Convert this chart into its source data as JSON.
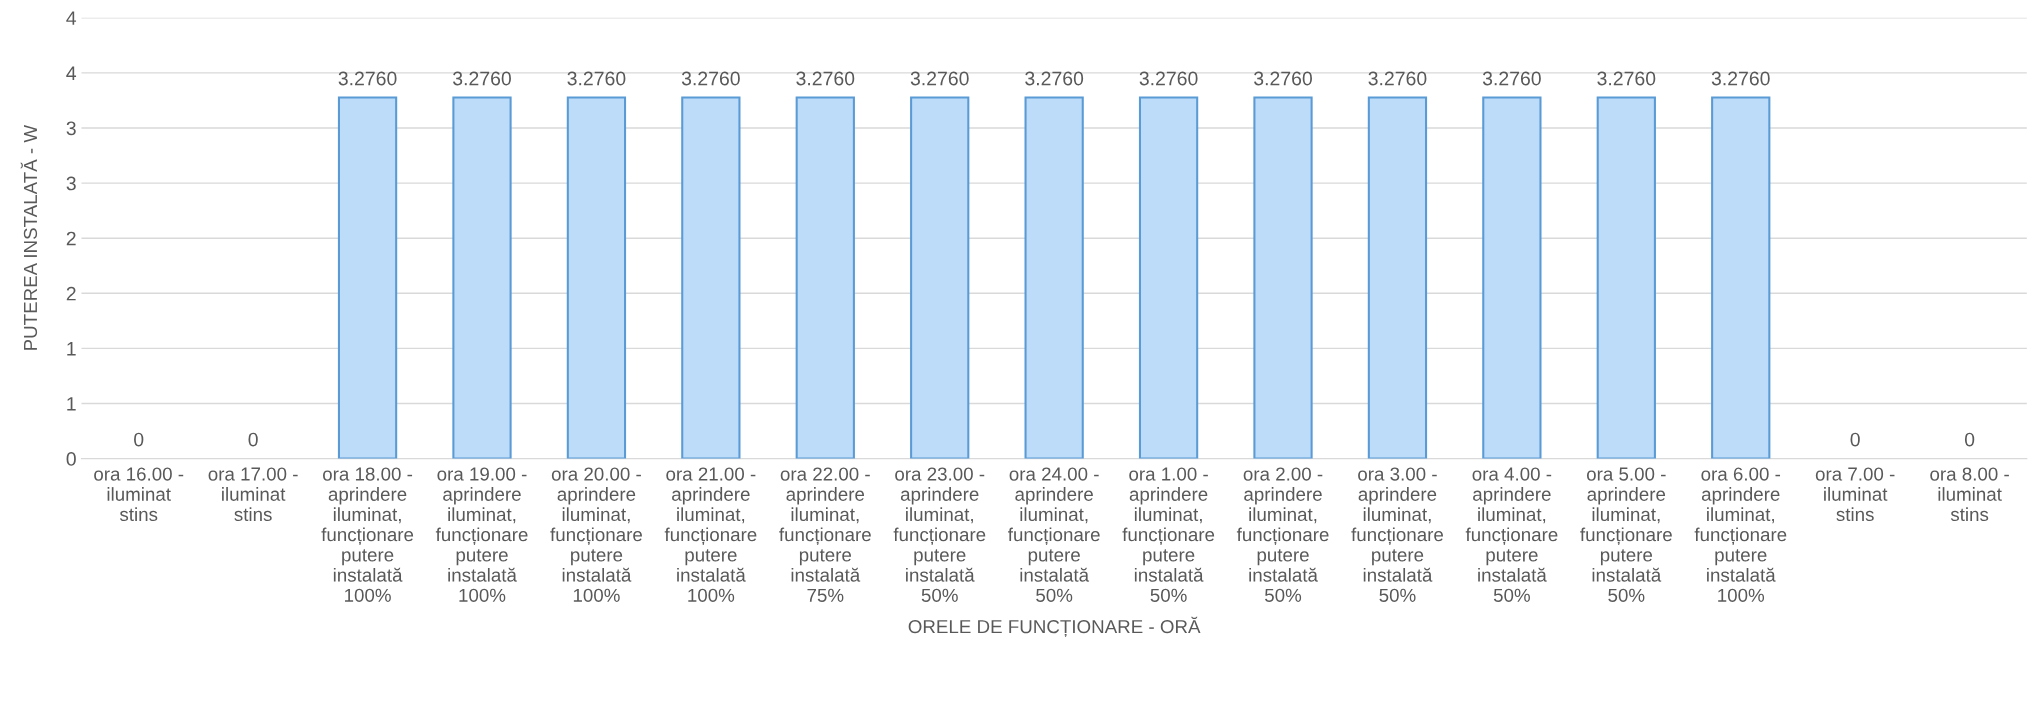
{
  "chart_data": {
    "type": "bar",
    "xlabel": "ORELE DE FUNCȚIONARE - ORĂ",
    "ylabel": "PUTEREA INSTALATĂ - W",
    "categories": [
      "ora 16.00 -\niluminat\nstins",
      "ora 17.00 -\niluminat\nstins",
      "ora 18.00 -\naprindere\niluminat,\nfuncționare\nputere\ninstalată\n100%",
      "ora 19.00 -\naprindere\niluminat,\nfuncționare\nputere\ninstalată\n100%",
      "ora 20.00 -\naprindere\niluminat,\nfuncționare\nputere\ninstalată\n100%",
      "ora 21.00 -\naprindere\niluminat,\nfuncționare\nputere\ninstalată\n100%",
      "ora 22.00 -\naprindere\niluminat,\nfuncționare\nputere\ninstalată\n75%",
      "ora 23.00 -\naprindere\niluminat,\nfuncționare\nputere\ninstalată\n50%",
      "ora 24.00 -\naprindere\niluminat,\nfuncționare\nputere\ninstalată\n50%",
      "ora 1.00 -\naprindere\niluminat,\nfuncționare\nputere\ninstalată\n50%",
      "ora 2.00 -\naprindere\niluminat,\nfuncționare\nputere\ninstalată\n50%",
      "ora 3.00 -\naprindere\niluminat,\nfuncționare\nputere\ninstalată\n50%",
      "ora 4.00 -\naprindere\niluminat,\nfuncționare\nputere\ninstalată\n50%",
      "ora 5.00 -\naprindere\niluminat,\nfuncționare\nputere\ninstalată\n50%",
      "ora 6.00 -\naprindere\niluminat,\nfuncționare\nputere\ninstalată\n100%",
      "ora 7.00 -\niluminat\nstins",
      "ora 8.00 -\niluminat\nstins"
    ],
    "values": [
      0,
      0,
      3.276,
      3.276,
      3.276,
      3.276,
      3.276,
      3.276,
      3.276,
      3.276,
      3.276,
      3.276,
      3.276,
      3.276,
      3.276,
      0,
      0
    ],
    "value_labels": [
      "0",
      "0",
      "3.2760",
      "3.2760",
      "3.2760",
      "3.2760",
      "3.2760",
      "3.2760",
      "3.2760",
      "3.2760",
      "3.2760",
      "3.2760",
      "3.2760",
      "3.2760",
      "3.2760",
      "0",
      "0"
    ],
    "color": "#bddcfa",
    "ylim": [
      0,
      4
    ],
    "yticks": [
      0,
      {
        "value": 0.5,
        "label": "1"
      },
      {
        "value": 1,
        "label": "1"
      },
      {
        "value": 1.5,
        "label": "2"
      },
      {
        "value": 2,
        "label": "2"
      },
      {
        "value": 2.5,
        "label": "3"
      },
      {
        "value": 3,
        "label": "3"
      },
      {
        "value": 3.5,
        "label": "4"
      },
      {
        "value": 4,
        "label": "4"
      }
    ],
    "grid": "y"
  }
}
